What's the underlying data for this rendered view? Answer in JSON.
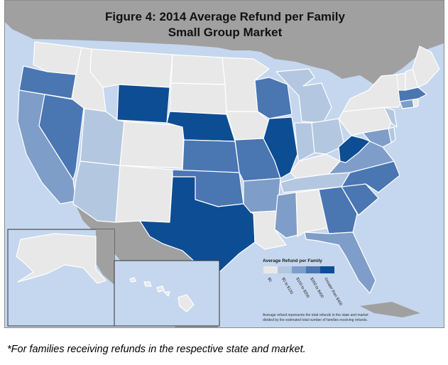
{
  "title": {
    "line1": "Figure 4: 2014 Average Refund per Family",
    "line2": "Small Group Market"
  },
  "legend": {
    "title": "Average Refund per Family",
    "bins": [
      {
        "label": "$0",
        "color": "#e8e8e8"
      },
      {
        "label": "$0 to $100",
        "color": "#b3c7e0"
      },
      {
        "label": "$100 to $200",
        "color": "#7e9ec9"
      },
      {
        "label": "$200 to $400",
        "color": "#4a76b2"
      },
      {
        "label": "Greater than $400",
        "color": "#0d4d94"
      }
    ],
    "note_line1": "Average refund represents the total refunds in the state and market",
    "note_line2": "divided by the estimated total number of families receiving refunds."
  },
  "footnote": "*For families receiving refunds in the respective state and market.",
  "colors": {
    "ocean": "#c5d7ee",
    "other_land": "#a0a0a0",
    "state_border": "#ffffff"
  },
  "map_data": {
    "WA": 0,
    "OR": 3,
    "CA": 2,
    "NV": 3,
    "ID": 0,
    "MT": 0,
    "WY": 4,
    "UT": 1,
    "AZ": 1,
    "CO": 0,
    "NM": 0,
    "ND": 0,
    "SD": 0,
    "NE": 4,
    "KS": 3,
    "OK": 3,
    "TX": 4,
    "MN": 0,
    "IA": 0,
    "MO": 3,
    "AR": 2,
    "LA": 0,
    "WI": 3,
    "IL": 4,
    "MI": 1,
    "IN": 1,
    "OH": 1,
    "KY": 0,
    "TN": 1,
    "MS": 2,
    "AL": 0,
    "GA": 3,
    "FL": 2,
    "SC": 3,
    "NC": 3,
    "VA": 2,
    "WV": 4,
    "MD": 2,
    "DE": 1,
    "PA": 0,
    "NJ": 1,
    "NY": 0,
    "CT": 2,
    "RI": 0,
    "MA": 3,
    "VT": 0,
    "NH": 0,
    "ME": 0,
    "AK": 0,
    "HI": 0
  }
}
